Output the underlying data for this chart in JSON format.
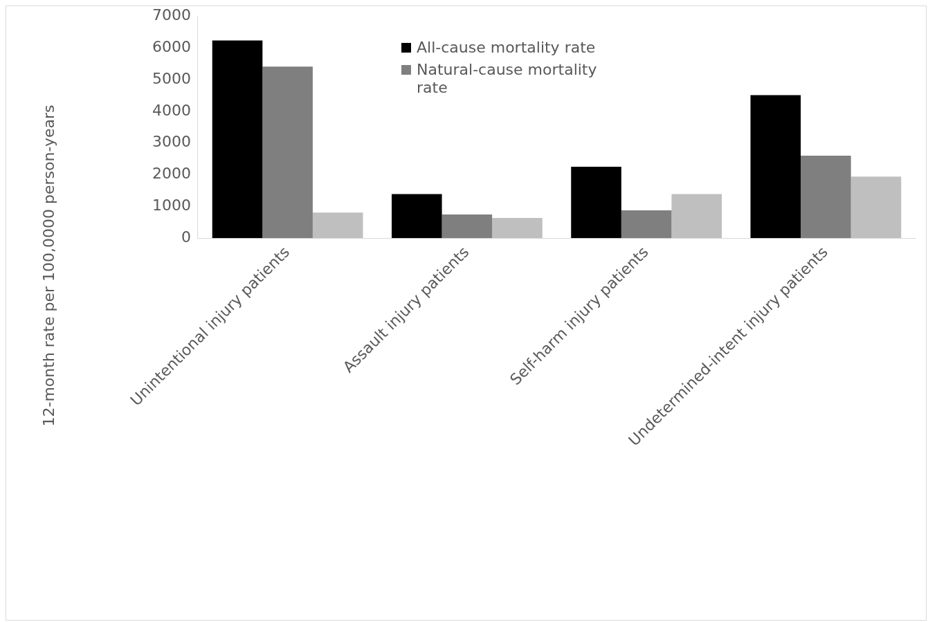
{
  "chart_data": {
    "type": "bar",
    "ylabel": "12-month rate per 100,0000 person-years",
    "categories": [
      "Unintentional injury patients",
      "Assault injury patients",
      "Self-harm injury patients",
      "Undetermined-intent injury patients"
    ],
    "series": [
      {
        "name": "All-cause mortality rate",
        "color": "#000000",
        "values": [
          6230,
          1390,
          2250,
          4510
        ]
      },
      {
        "name": "Natural-cause mortality rate",
        "color": "#7f7f7f",
        "values": [
          5410,
          750,
          880,
          2600
        ]
      },
      {
        "color": "#bfbfbf",
        "values": [
          810,
          640,
          1390,
          1940
        ]
      }
    ],
    "ylim": [
      0,
      7000
    ],
    "yticks": [
      0,
      1000,
      2000,
      3000,
      4000,
      5000,
      6000,
      7000
    ],
    "grid": false,
    "legend": "top"
  }
}
